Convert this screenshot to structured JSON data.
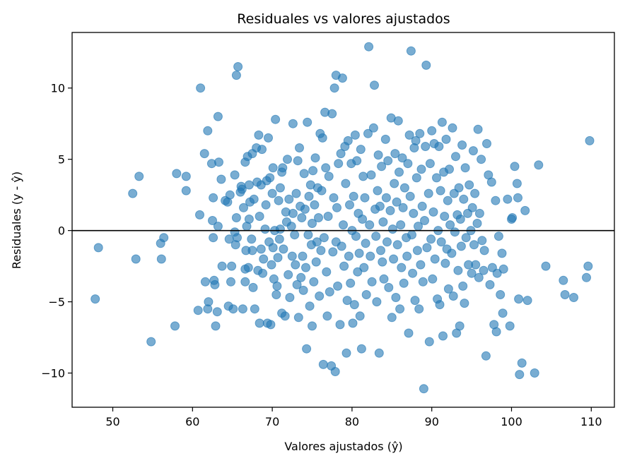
{
  "chart_data": {
    "type": "scatter",
    "title": "Residuales vs valores ajustados",
    "xlabel": "Valores ajustados (ŷ)",
    "ylabel": "Residuales (y - ŷ)",
    "xlim": [
      44.9,
      112.9
    ],
    "ylim": [
      -12.4,
      13.9
    ],
    "xticks": [
      50,
      60,
      70,
      80,
      90,
      100,
      110
    ],
    "yticks": [
      -10,
      -5,
      0,
      5,
      10
    ],
    "xtick_labels": [
      "50",
      "60",
      "70",
      "80",
      "90",
      "100",
      "110"
    ],
    "ytick_labels": [
      "−10",
      "−5",
      "0",
      "5",
      "10"
    ],
    "reference_line_y": 0,
    "grid": false,
    "point_color": "#1f77b4",
    "point_alpha": 0.6,
    "reference_line_color": "#000000",
    "points": [
      [
        47.8,
        -4.8
      ],
      [
        48.2,
        -1.2
      ],
      [
        52.5,
        2.6
      ],
      [
        52.9,
        -2.0
      ],
      [
        53.3,
        3.8
      ],
      [
        54.8,
        -7.8
      ],
      [
        56.0,
        -0.9
      ],
      [
        56.1,
        -2.0
      ],
      [
        56.4,
        -0.5
      ],
      [
        57.8,
        -6.7
      ],
      [
        58.0,
        4.0
      ],
      [
        59.2,
        3.8
      ],
      [
        59.2,
        2.8
      ],
      [
        60.7,
        -5.6
      ],
      [
        60.9,
        1.1
      ],
      [
        61.0,
        10.0
      ],
      [
        61.5,
        5.4
      ],
      [
        61.6,
        -3.6
      ],
      [
        61.9,
        -5.5
      ],
      [
        61.9,
        7.0
      ],
      [
        62.0,
        -5.0
      ],
      [
        62.4,
        4.7
      ],
      [
        62.5,
        0.7
      ],
      [
        62.6,
        -0.5
      ],
      [
        62.6,
        2.3
      ],
      [
        62.7,
        -3.5
      ],
      [
        62.8,
        -3.8
      ],
      [
        62.9,
        -6.7
      ],
      [
        63.1,
        -5.7
      ],
      [
        63.2,
        8.0
      ],
      [
        63.2,
        0.3
      ],
      [
        63.3,
        4.8
      ],
      [
        63.6,
        3.6
      ],
      [
        63.7,
        -2.5
      ],
      [
        64.1,
        2.1
      ],
      [
        64.4,
        2.0
      ],
      [
        64.5,
        -5.3
      ],
      [
        64.6,
        -0.6
      ],
      [
        64.7,
        2.5
      ],
      [
        64.8,
        -3.6
      ],
      [
        64.9,
        -2.5
      ],
      [
        65.1,
        -5.5
      ],
      [
        65.3,
        3.9
      ],
      [
        65.5,
        10.9
      ],
      [
        65.5,
        0.9
      ],
      [
        65.7,
        11.5
      ],
      [
        65.3,
        -0.1
      ],
      [
        65.4,
        -1.0
      ],
      [
        65.6,
        -0.5
      ],
      [
        66.0,
        2.7
      ],
      [
        66.1,
        3.1
      ],
      [
        66.2,
        2.9
      ],
      [
        66.3,
        -5.5
      ],
      [
        66.4,
        1.6
      ],
      [
        66.6,
        -3.6
      ],
      [
        66.6,
        -2.7
      ],
      [
        66.6,
        4.8
      ],
      [
        66.7,
        -1.4
      ],
      [
        66.8,
        0.3
      ],
      [
        66.9,
        5.2
      ],
      [
        67.0,
        -2.6
      ],
      [
        67.1,
        3.2
      ],
      [
        67.1,
        0.8
      ],
      [
        67.2,
        2.0
      ],
      [
        67.4,
        -0.6
      ],
      [
        67.5,
        -1.4
      ],
      [
        67.5,
        5.4
      ],
      [
        67.6,
        -4.0
      ],
      [
        67.7,
        2.2
      ],
      [
        67.8,
        -5.5
      ],
      [
        68.0,
        5.8
      ],
      [
        68.1,
        3.4
      ],
      [
        68.2,
        -2.8
      ],
      [
        68.3,
        6.7
      ],
      [
        68.4,
        1.0
      ],
      [
        68.4,
        -6.5
      ],
      [
        68.6,
        3.2
      ],
      [
        68.6,
        -1.3
      ],
      [
        68.7,
        5.7
      ],
      [
        68.8,
        -3.0
      ],
      [
        68.9,
        -2.0
      ],
      [
        69.1,
        0.1
      ],
      [
        69.2,
        1.8
      ],
      [
        69.3,
        3.5
      ],
      [
        69.4,
        -6.5
      ],
      [
        69.5,
        6.5
      ],
      [
        69.6,
        -0.8
      ],
      [
        69.7,
        3.7
      ],
      [
        69.8,
        -6.6
      ],
      [
        69.9,
        -2.4
      ],
      [
        70.0,
        2.6
      ],
      [
        70.1,
        4.4
      ],
      [
        70.1,
        -1.2
      ],
      [
        70.2,
        -3.4
      ],
      [
        70.3,
        0.0
      ],
      [
        70.4,
        7.8
      ],
      [
        70.5,
        -4.5
      ],
      [
        70.6,
        -3.9
      ],
      [
        70.7,
        -1.9
      ],
      [
        70.8,
        2.1
      ],
      [
        70.9,
        -0.6
      ],
      [
        71.0,
        0.1
      ],
      [
        71.0,
        3.0
      ],
      [
        71.2,
        4.1
      ],
      [
        71.2,
        -5.8
      ],
      [
        71.3,
        4.4
      ],
      [
        71.4,
        -1.3
      ],
      [
        71.6,
        -6.0
      ],
      [
        71.7,
        1.3
      ],
      [
        71.8,
        0.6
      ],
      [
        71.9,
        5.0
      ],
      [
        72.0,
        -3.1
      ],
      [
        72.1,
        2.2
      ],
      [
        72.2,
        -4.7
      ],
      [
        72.4,
        0.3
      ],
      [
        72.5,
        -1.8
      ],
      [
        72.6,
        7.5
      ],
      [
        72.6,
        1.2
      ],
      [
        72.8,
        -0.3
      ],
      [
        72.9,
        -2.4
      ],
      [
        73.0,
        2.6
      ],
      [
        73.1,
        -3.8
      ],
      [
        73.2,
        4.9
      ],
      [
        73.3,
        -6.1
      ],
      [
        73.4,
        5.8
      ],
      [
        73.5,
        1.7
      ],
      [
        73.6,
        -3.3
      ],
      [
        73.7,
        0.9
      ],
      [
        73.8,
        -1.8
      ],
      [
        73.9,
        -4.2
      ],
      [
        74.0,
        4.0
      ],
      [
        74.1,
        1.5
      ],
      [
        74.2,
        -2.6
      ],
      [
        74.3,
        -8.3
      ],
      [
        74.4,
        7.6
      ],
      [
        74.5,
        -0.3
      ],
      [
        74.6,
        2.4
      ],
      [
        74.7,
        -5.3
      ],
      [
        74.8,
        3.2
      ],
      [
        74.9,
        -1.0
      ],
      [
        75.0,
        -6.7
      ],
      [
        75.0,
        0.5
      ],
      [
        75.1,
        4.2
      ],
      [
        75.2,
        -3.6
      ],
      [
        75.3,
        1.8
      ],
      [
        75.4,
        5.1
      ],
      [
        75.5,
        -2.2
      ],
      [
        75.6,
        -0.8
      ],
      [
        75.7,
        3.0
      ],
      [
        75.8,
        0.9
      ],
      [
        75.9,
        -4.6
      ],
      [
        76.0,
        6.8
      ],
      [
        76.1,
        -1.4
      ],
      [
        76.2,
        2.8
      ],
      [
        76.3,
        6.5
      ],
      [
        76.4,
        -9.4
      ],
      [
        76.5,
        -0.5
      ],
      [
        76.6,
        8.3
      ],
      [
        76.7,
        4.4
      ],
      [
        76.8,
        -2.9
      ],
      [
        76.9,
        -6.0
      ],
      [
        77.0,
        1.0
      ],
      [
        77.1,
        3.8
      ],
      [
        77.2,
        -4.3
      ],
      [
        77.4,
        -9.5
      ],
      [
        77.5,
        8.2
      ],
      [
        77.6,
        -1.5
      ],
      [
        77.7,
        2.3
      ],
      [
        77.8,
        10.0
      ],
      [
        77.9,
        -9.9
      ],
      [
        78.0,
        10.9
      ],
      [
        78.0,
        -0.8
      ],
      [
        78.1,
        1.6
      ],
      [
        78.2,
        -3.9
      ],
      [
        78.3,
        4.7
      ],
      [
        78.5,
        -6.6
      ],
      [
        78.6,
        5.4
      ],
      [
        78.7,
        -1.1
      ],
      [
        78.8,
        10.7
      ],
      [
        78.9,
        0.4
      ],
      [
        79.0,
        -2.5
      ],
      [
        79.1,
        5.9
      ],
      [
        79.2,
        3.3
      ],
      [
        79.3,
        -8.6
      ],
      [
        79.4,
        -4.9
      ],
      [
        79.5,
        6.3
      ],
      [
        79.6,
        -1.8
      ],
      [
        79.7,
        1.8
      ],
      [
        79.8,
        -3.7
      ],
      [
        79.9,
        4.7
      ],
      [
        80.0,
        0.0
      ],
      [
        80.1,
        -6.5
      ],
      [
        80.2,
        2.4
      ],
      [
        80.3,
        -5.2
      ],
      [
        80.4,
        6.7
      ],
      [
        80.5,
        -0.4
      ],
      [
        80.6,
        4.9
      ],
      [
        80.7,
        -2.9
      ],
      [
        80.8,
        1.2
      ],
      [
        80.9,
        -1.6
      ],
      [
        81.0,
        -6.0
      ],
      [
        81.1,
        5.7
      ],
      [
        81.2,
        -8.3
      ],
      [
        81.3,
        0.8
      ],
      [
        81.4,
        3.8
      ],
      [
        81.5,
        -2.6
      ],
      [
        81.6,
        2.3
      ],
      [
        81.7,
        -0.9
      ],
      [
        81.8,
        -4.5
      ],
      [
        82.0,
        6.8
      ],
      [
        82.1,
        12.9
      ],
      [
        82.2,
        0.4
      ],
      [
        82.3,
        -1.8
      ],
      [
        82.4,
        3.9
      ],
      [
        82.5,
        -3.6
      ],
      [
        82.7,
        7.2
      ],
      [
        82.8,
        10.2
      ],
      [
        82.9,
        1.5
      ],
      [
        83.0,
        -0.4
      ],
      [
        83.1,
        -5.0
      ],
      [
        83.2,
        2.8
      ],
      [
        83.3,
        5.3
      ],
      [
        83.4,
        -8.6
      ],
      [
        83.5,
        1.7
      ],
      [
        83.6,
        -1.4
      ],
      [
        83.7,
        4.5
      ],
      [
        83.8,
        -2.2
      ],
      [
        83.9,
        0.6
      ],
      [
        84.0,
        -3.4
      ],
      [
        84.2,
        6.4
      ],
      [
        84.3,
        2.3
      ],
      [
        84.4,
        -0.8
      ],
      [
        84.5,
        4.9
      ],
      [
        84.6,
        -4.0
      ],
      [
        84.8,
        1.4
      ],
      [
        84.9,
        7.9
      ],
      [
        85.0,
        -6.1
      ],
      [
        85.1,
        0.1
      ],
      [
        85.2,
        -2.0
      ],
      [
        85.3,
        3.3
      ],
      [
        85.4,
        5.4
      ],
      [
        85.5,
        -4.7
      ],
      [
        85.6,
        2.0
      ],
      [
        85.7,
        -1.0
      ],
      [
        85.8,
        7.7
      ],
      [
        85.9,
        4.1
      ],
      [
        86.0,
        -5.5
      ],
      [
        86.1,
        0.4
      ],
      [
        86.2,
        -2.6
      ],
      [
        86.3,
        5.1
      ],
      [
        86.4,
        1.6
      ],
      [
        86.5,
        -3.7
      ],
      [
        86.6,
        3.0
      ],
      [
        86.8,
        -0.5
      ],
      [
        86.9,
        -1.8
      ],
      [
        87.0,
        4.7
      ],
      [
        87.1,
        -7.2
      ],
      [
        87.2,
        6.7
      ],
      [
        87.3,
        2.4
      ],
      [
        87.4,
        12.6
      ],
      [
        87.5,
        -0.3
      ],
      [
        87.6,
        -3.0
      ],
      [
        87.7,
        1.2
      ],
      [
        87.8,
        5.8
      ],
      [
        87.9,
        -4.9
      ],
      [
        88.0,
        6.3
      ],
      [
        88.1,
        3.7
      ],
      [
        88.2,
        -1.4
      ],
      [
        88.3,
        0.3
      ],
      [
        88.4,
        -5.5
      ],
      [
        88.5,
        6.8
      ],
      [
        88.6,
        -2.4
      ],
      [
        88.7,
        4.3
      ],
      [
        88.8,
        1.7
      ],
      [
        88.9,
        -3.6
      ],
      [
        89.0,
        -11.1
      ],
      [
        89.1,
        0.7
      ],
      [
        89.2,
        5.9
      ],
      [
        89.3,
        11.6
      ],
      [
        89.4,
        -1.2
      ],
      [
        89.6,
        2.6
      ],
      [
        89.7,
        -7.8
      ],
      [
        89.8,
        4.7
      ],
      [
        89.9,
        -0.6
      ],
      [
        90.0,
        7.0
      ],
      [
        90.1,
        -3.4
      ],
      [
        90.2,
        1.3
      ],
      [
        90.3,
        6.1
      ],
      [
        90.4,
        -2.0
      ],
      [
        90.6,
        3.7
      ],
      [
        90.7,
        -4.8
      ],
      [
        90.8,
        0.0
      ],
      [
        90.9,
        5.9
      ],
      [
        91.0,
        -5.2
      ],
      [
        91.1,
        2.8
      ],
      [
        91.2,
        -0.8
      ],
      [
        91.3,
        7.6
      ],
      [
        91.4,
        -7.4
      ],
      [
        91.5,
        4.1
      ],
      [
        91.6,
        1.0
      ],
      [
        91.7,
        -2.3
      ],
      [
        91.8,
        6.4
      ],
      [
        91.9,
        -1.3
      ],
      [
        92.0,
        2.1
      ],
      [
        92.1,
        -4.1
      ],
      [
        92.2,
        4.3
      ],
      [
        92.3,
        0.4
      ],
      [
        92.5,
        -1.6
      ],
      [
        92.6,
        7.2
      ],
      [
        92.7,
        -4.6
      ],
      [
        92.8,
        2.6
      ],
      [
        92.9,
        -0.1
      ],
      [
        93.0,
        5.2
      ],
      [
        93.1,
        -7.2
      ],
      [
        93.2,
        1.1
      ],
      [
        93.3,
        -2.8
      ],
      [
        93.4,
        3.0
      ],
      [
        93.5,
        -6.7
      ],
      [
        93.6,
        0.8
      ],
      [
        93.7,
        -1.1
      ],
      [
        93.8,
        6.0
      ],
      [
        93.9,
        -3.9
      ],
      [
        94.0,
        2.2
      ],
      [
        94.1,
        -5.1
      ],
      [
        94.2,
        4.4
      ],
      [
        94.3,
        -0.5
      ],
      [
        94.5,
        1.2
      ],
      [
        94.6,
        -2.4
      ],
      [
        94.7,
        3.2
      ],
      [
        94.9,
        0.0
      ],
      [
        95.0,
        -3.0
      ],
      [
        95.1,
        1.6
      ],
      [
        95.2,
        5.6
      ],
      [
        95.3,
        -1.0
      ],
      [
        95.4,
        2.6
      ],
      [
        95.5,
        -2.4
      ],
      [
        95.7,
        0.5
      ],
      [
        95.8,
        7.1
      ],
      [
        95.9,
        -3.3
      ],
      [
        96.0,
        1.2
      ],
      [
        96.2,
        5.0
      ],
      [
        96.3,
        -0.7
      ],
      [
        96.5,
        -2.8
      ],
      [
        96.6,
        -1.4
      ],
      [
        96.8,
        -8.8
      ],
      [
        96.9,
        6.1
      ],
      [
        97.1,
        3.9
      ],
      [
        97.3,
        -3.8
      ],
      [
        97.5,
        3.4
      ],
      [
        97.6,
        -2.6
      ],
      [
        97.8,
        -6.6
      ],
      [
        98.0,
        2.1
      ],
      [
        98.1,
        -7.1
      ],
      [
        98.2,
        -3.0
      ],
      [
        98.4,
        -0.4
      ],
      [
        98.6,
        -4.5
      ],
      [
        98.8,
        -1.6
      ],
      [
        98.9,
        -5.8
      ],
      [
        99.0,
        -2.7
      ],
      [
        99.5,
        2.2
      ],
      [
        99.8,
        -6.7
      ],
      [
        100.0,
        0.8
      ],
      [
        100.1,
        0.9
      ],
      [
        100.4,
        4.5
      ],
      [
        100.7,
        3.3
      ],
      [
        100.8,
        2.3
      ],
      [
        100.9,
        -4.8
      ],
      [
        101.0,
        -10.1
      ],
      [
        101.3,
        -9.3
      ],
      [
        101.7,
        1.4
      ],
      [
        102.0,
        -4.9
      ],
      [
        102.9,
        -10.0
      ],
      [
        103.4,
        4.6
      ],
      [
        104.3,
        -2.5
      ],
      [
        106.5,
        -3.5
      ],
      [
        106.7,
        -4.5
      ],
      [
        107.8,
        -4.7
      ],
      [
        109.4,
        -3.3
      ],
      [
        109.6,
        -2.5
      ],
      [
        109.8,
        6.3
      ]
    ]
  }
}
